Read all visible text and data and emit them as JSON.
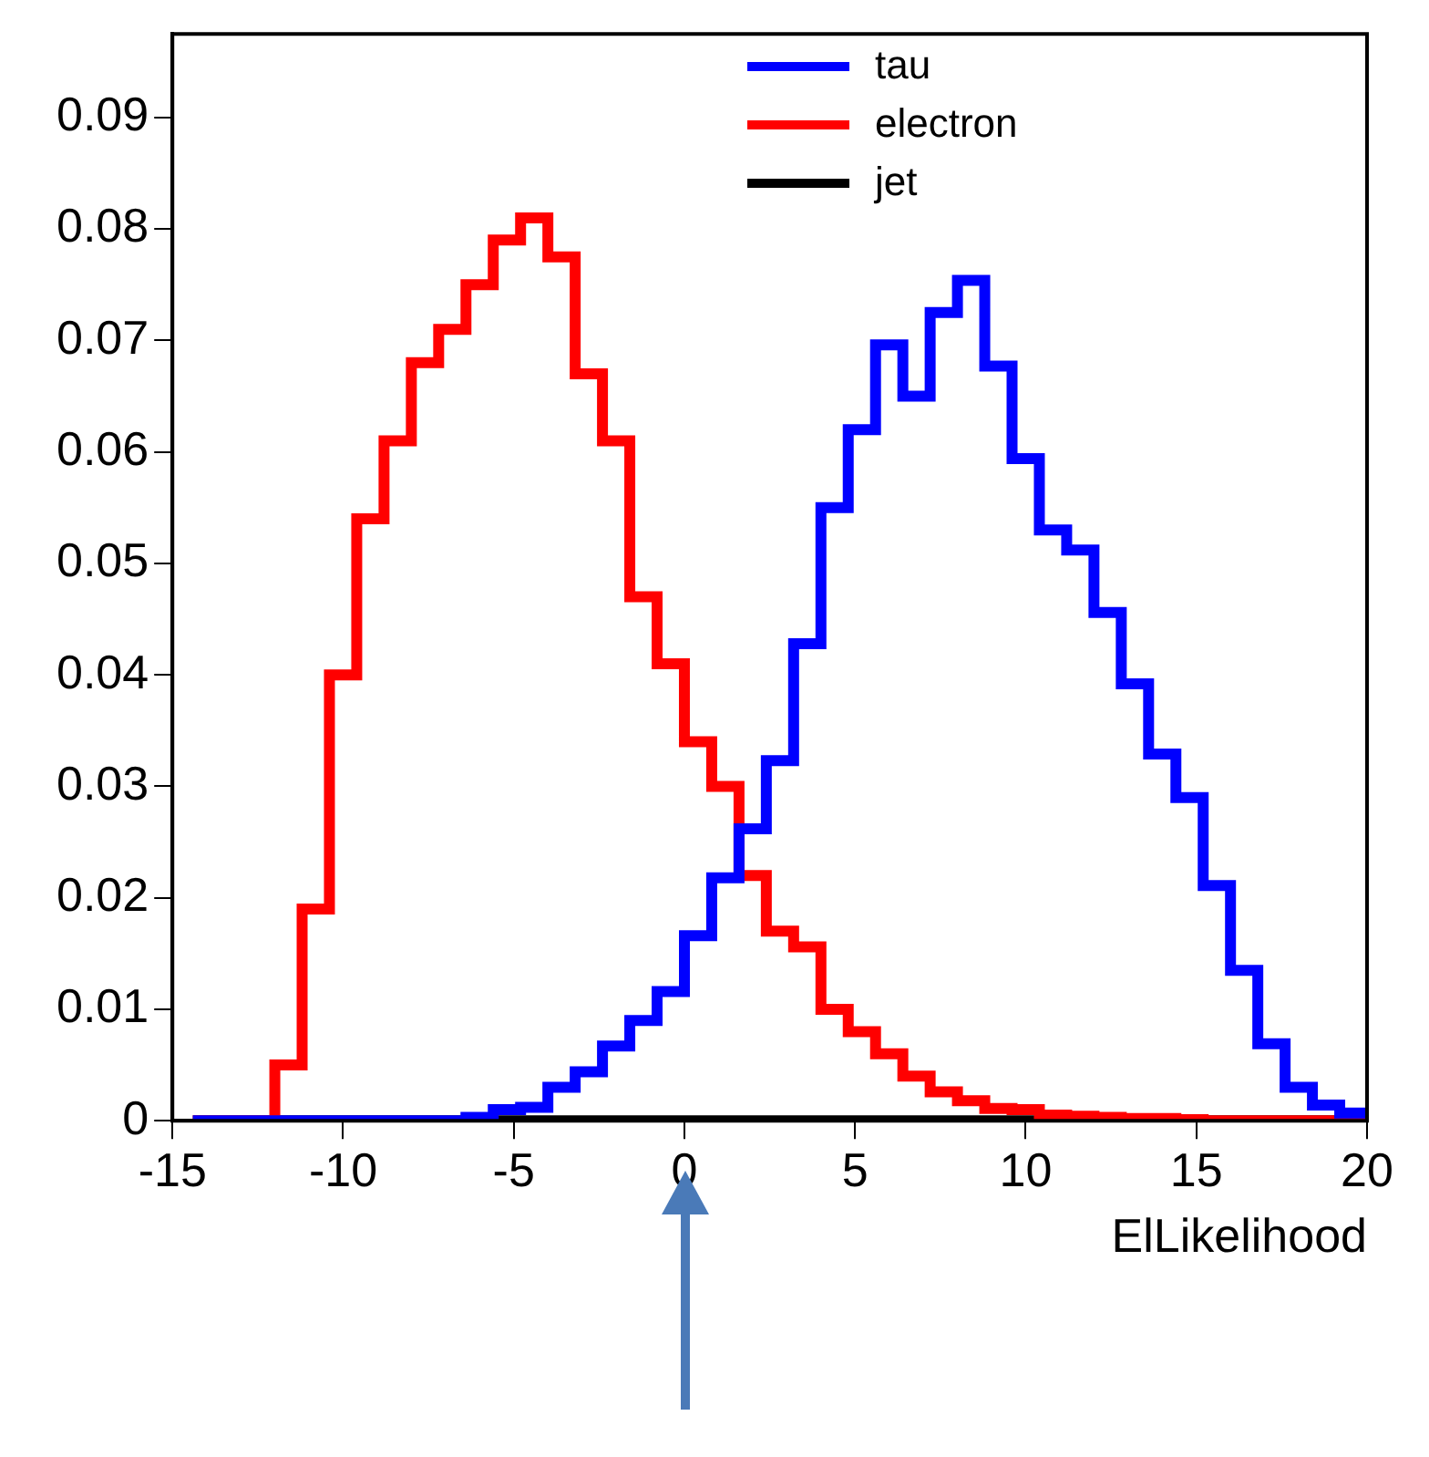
{
  "chart_data": {
    "type": "histogram",
    "xlabel": "ElLikelihood",
    "bins": [
      -14.4,
      -13.6,
      -12.8,
      -12.0,
      -11.2,
      -10.4,
      -9.6,
      -8.8,
      -8.0,
      -7.2,
      -6.4,
      -5.6,
      -4.8,
      -4.0,
      -3.2,
      -2.4,
      -1.6,
      -0.8,
      0.0,
      0.8,
      1.6,
      2.4,
      3.2,
      4.0,
      4.8,
      5.6,
      6.4,
      7.2,
      8.0,
      8.8,
      9.6,
      10.4,
      11.2,
      12.0,
      12.8,
      13.6,
      14.4,
      15.2,
      16.0,
      16.8,
      17.6,
      18.4,
      19.2,
      20.0
    ],
    "series": [
      {
        "name": "tau",
        "color": "#0000ff",
        "values": [
          0,
          0,
          0,
          0,
          0,
          0,
          0,
          0,
          0,
          0,
          0.0003,
          0.001,
          0.0012,
          0.003,
          0.0044,
          0.0067,
          0.009,
          0.0116,
          0.0166,
          0.0218,
          0.0262,
          0.0323,
          0.0428,
          0.055,
          0.062,
          0.0696,
          0.065,
          0.0725,
          0.0754,
          0.0677,
          0.0594,
          0.053,
          0.0512,
          0.0456,
          0.0392,
          0.0329,
          0.029,
          0.0211,
          0.0135,
          0.0069,
          0.003,
          0.0014,
          0.0007
        ]
      },
      {
        "name": "electron",
        "color": "#ff0000",
        "values": [
          0,
          0,
          0,
          0.005,
          0.019,
          0.04,
          0.054,
          0.061,
          0.068,
          0.071,
          0.075,
          0.079,
          0.081,
          0.0775,
          0.067,
          0.061,
          0.047,
          0.041,
          0.034,
          0.03,
          0.022,
          0.017,
          0.0156,
          0.01,
          0.008,
          0.006,
          0.004,
          0.0026,
          0.0018,
          0.0011,
          0.001,
          0.0005,
          0.0004,
          0.0003,
          0.0002,
          0.0002,
          0.0001,
          0,
          0,
          0,
          0,
          0,
          0
        ]
      },
      {
        "name": "jet",
        "color": "#000000",
        "values": [
          0,
          0,
          0,
          0,
          0,
          0,
          0,
          0,
          0,
          0,
          0,
          0,
          0,
          0,
          0,
          0,
          0,
          0,
          0,
          0,
          0,
          0,
          0,
          0,
          0,
          0,
          0,
          0,
          0,
          0,
          0,
          0,
          0,
          0,
          0,
          0,
          0,
          0,
          0,
          0,
          0,
          0,
          0
        ]
      }
    ],
    "xlim": [
      -15,
      20
    ],
    "xticks": [
      -15,
      -10,
      -5,
      0,
      5,
      10,
      15,
      20
    ],
    "ylim": [
      0,
      0.0975
    ],
    "yticks": [
      {
        "value": 0,
        "label": "0"
      },
      0.01,
      0.02,
      0.03,
      0.04,
      0.05,
      0.06,
      0.07,
      0.08,
      0.09
    ],
    "grid": false,
    "legend": "top right"
  }
}
